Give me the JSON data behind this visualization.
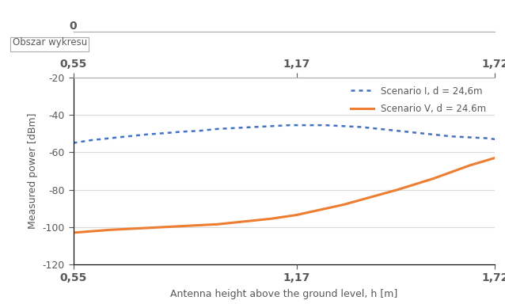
{
  "xlabel": "Antenna height above the ground level, h [m]",
  "ylabel": "Measured power [dBm]",
  "xlim": [
    0.55,
    1.72
  ],
  "ylim": [
    -120,
    -20
  ],
  "yticks": [
    -120,
    -100,
    -80,
    -60,
    -40,
    -20
  ],
  "xticks": [
    0.55,
    1.17,
    1.72
  ],
  "xtick_labels": [
    "0,55",
    "1,17",
    "1,72"
  ],
  "scenario1_x": [
    0.55,
    0.6,
    0.65,
    0.7,
    0.75,
    0.8,
    0.85,
    0.9,
    0.95,
    1.0,
    1.05,
    1.1,
    1.15,
    1.2,
    1.25,
    1.3,
    1.35,
    1.4,
    1.45,
    1.5,
    1.55,
    1.6,
    1.65,
    1.7,
    1.72
  ],
  "scenario1_y": [
    -55.0,
    -53.5,
    -52.5,
    -51.5,
    -50.5,
    -49.8,
    -49.0,
    -48.5,
    -47.5,
    -47.0,
    -46.5,
    -46.0,
    -45.5,
    -45.5,
    -45.5,
    -46.0,
    -46.5,
    -47.5,
    -48.5,
    -49.5,
    -50.5,
    -51.5,
    -52.0,
    -52.5,
    -53.0
  ],
  "scenario5_x": [
    0.55,
    0.65,
    0.75,
    0.85,
    0.95,
    1.05,
    1.1,
    1.17,
    1.3,
    1.45,
    1.55,
    1.65,
    1.72
  ],
  "scenario5_y": [
    -103.0,
    -101.5,
    -100.5,
    -99.5,
    -98.5,
    -96.5,
    -95.5,
    -93.5,
    -88.0,
    -80.0,
    -74.0,
    -67.0,
    -63.0
  ],
  "scenario1_color": "#4472C4",
  "scenario5_color": "#ED7D31",
  "scenario1_label": "Scenario I, d = 24,6m",
  "scenario5_label": "Scenario V, d = 24.6m",
  "grid_color": "#D9D9D9",
  "text_color": "#595959",
  "legend_box_label": "Obszar wykresu",
  "top_tick_label": "0"
}
